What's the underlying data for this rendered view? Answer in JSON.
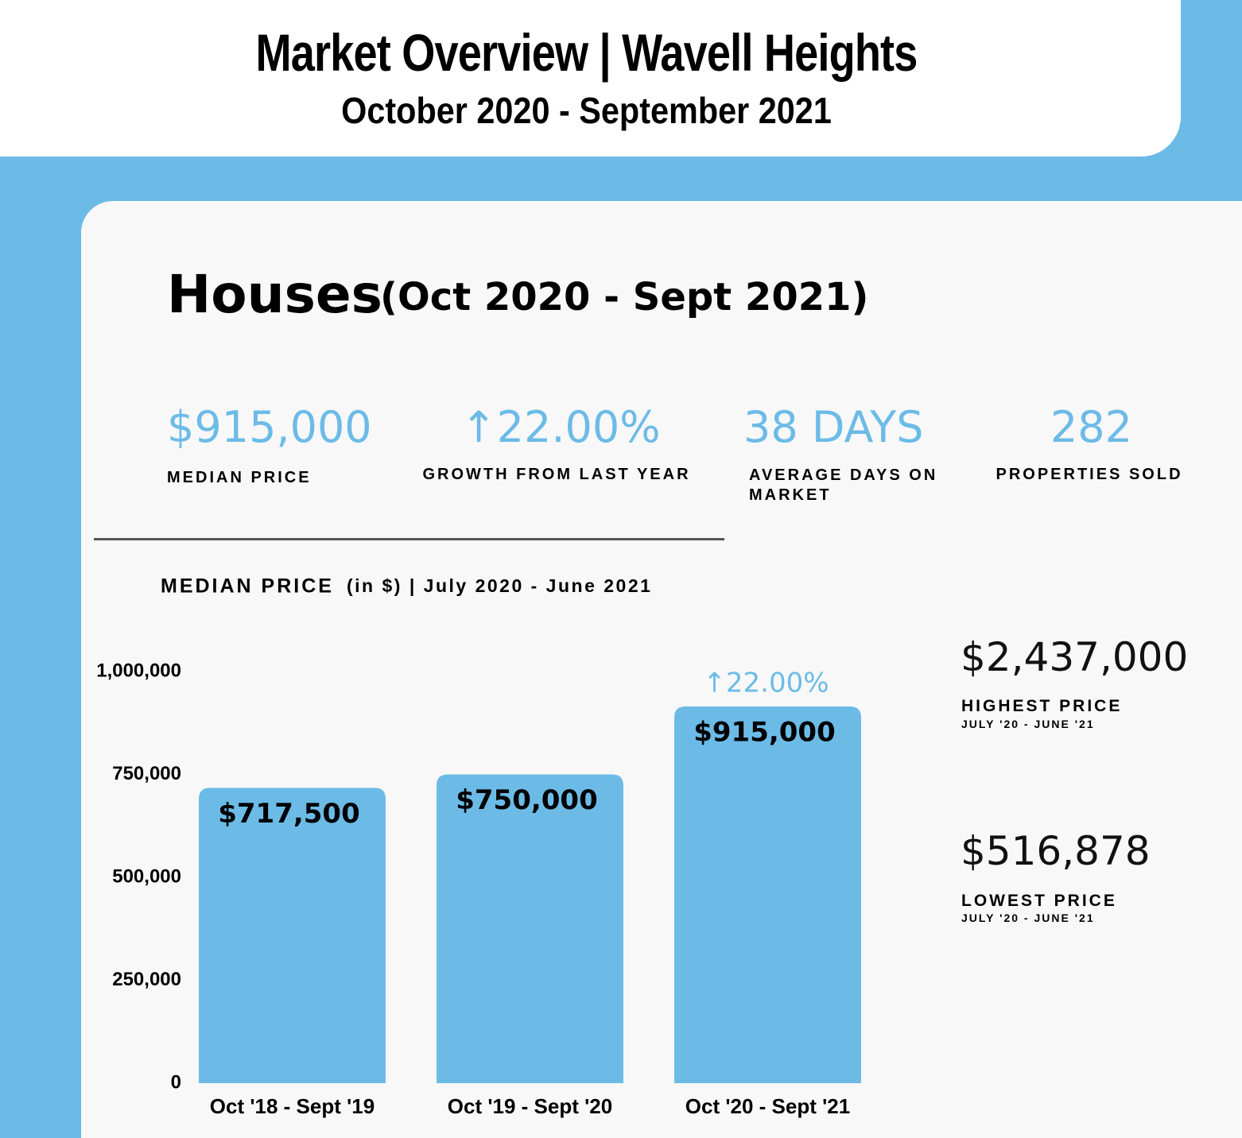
{
  "header": {
    "title": "Market Overview | Wavell Heights",
    "subtitle": "October 2020 - September 2021"
  },
  "section": {
    "title": "Houses",
    "period": "(Oct 2020 - Sept 2021)"
  },
  "stats": [
    {
      "value": "$915,000",
      "label": "MEDIAN PRICE"
    },
    {
      "value": "↑22.00%",
      "label": "GROWTH FROM LAST YEAR"
    },
    {
      "value": "38 DAYS",
      "label": "AVERAGE DAYS ON MARKET"
    },
    {
      "value": "282",
      "label": "PROPERTIES SOLD"
    }
  ],
  "side": [
    {
      "value": "$2,437,000",
      "label": "HIGHEST PRICE",
      "period": "JULY '20 - JUNE '21"
    },
    {
      "value": "$516,878",
      "label": "LOWEST PRICE",
      "period": "JULY '20 - JUNE '21"
    }
  ],
  "chart_data": {
    "type": "bar",
    "title": "MEDIAN PRICE",
    "subtitle": "(in $) | July 2020 - June 2021",
    "categories": [
      "Oct '18 - Sept '19",
      "Oct '19 - Sept '20",
      "Oct '20 - Sept '21"
    ],
    "values": [
      717500,
      750000,
      915000
    ],
    "value_labels": [
      "$717,500",
      "$750,000",
      "$915,000"
    ],
    "annotation": "↑22.00%",
    "color": "#6cbbe7",
    "ylim": [
      0,
      1000000
    ],
    "yticks": [
      0,
      {
        "value": 250000,
        "label": "250,000"
      },
      {
        "value": 500000,
        "label": "500,000"
      },
      {
        "value": 750000,
        "label": "750,000"
      },
      {
        "value": 1000000,
        "label": "1,000,000"
      }
    ]
  }
}
